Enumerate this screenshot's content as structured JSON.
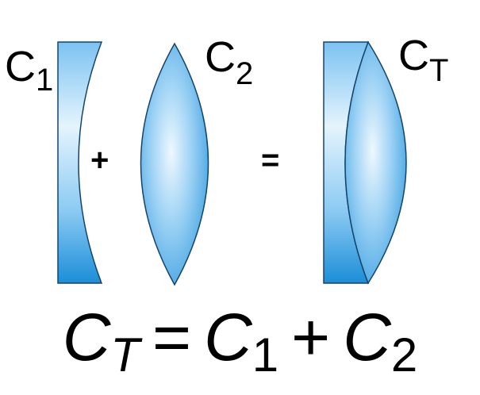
{
  "colors": {
    "lens_dark": "#1e8fd8",
    "lens_mid": "#73bdf0",
    "lens_light": "#e9f6fd",
    "outline": "#15446b"
  },
  "lenses": {
    "c1": {
      "letter": "C",
      "sub": "1"
    },
    "c2": {
      "letter": "C",
      "sub": "2"
    },
    "ct": {
      "letter": "C",
      "sub": "T"
    }
  },
  "operators": {
    "plus": "+",
    "equals": "="
  },
  "formula": {
    "lhs_letter": "C",
    "lhs_sub": "T",
    "eq": "=",
    "a_letter": "C",
    "a_sub": "1",
    "plus": "+",
    "b_letter": "C",
    "b_sub": "2"
  }
}
